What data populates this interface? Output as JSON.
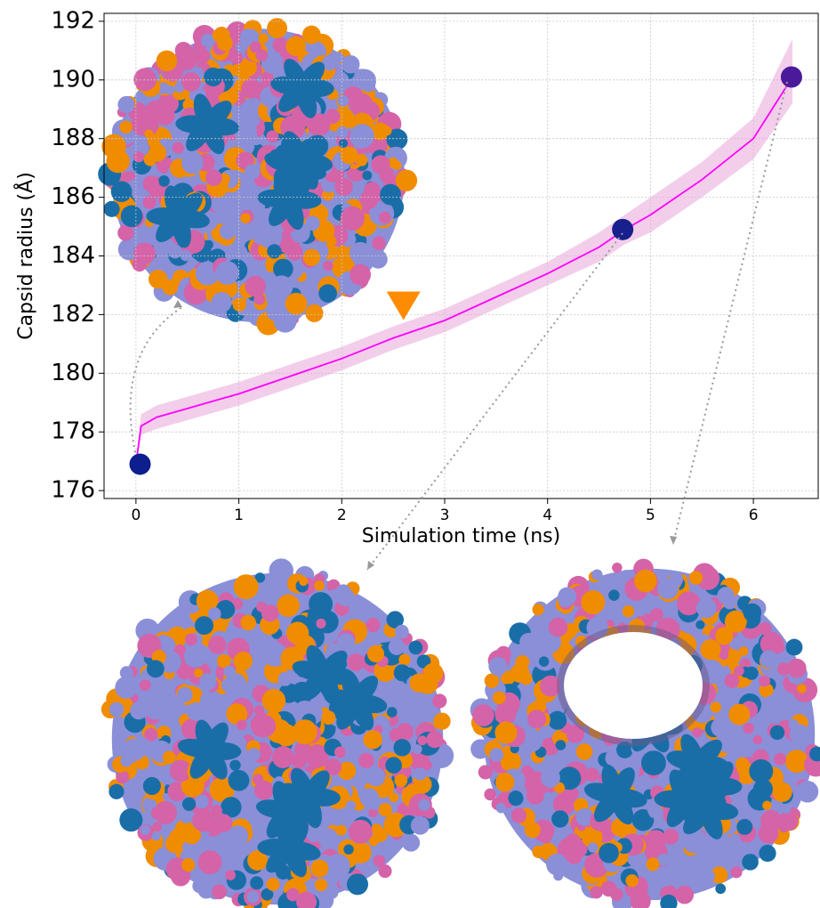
{
  "chart_data": {
    "type": "line",
    "x_label": "Simulation time (ns)",
    "y_label": "Capsid radius (Å)",
    "xlim": [
      -0.31,
      6.63
    ],
    "ylim": [
      175.73,
      192.27
    ],
    "xticks": [
      0,
      1,
      2,
      3,
      4,
      5,
      6
    ],
    "yticks": [
      176,
      178,
      180,
      182,
      184,
      186,
      188,
      190,
      192
    ],
    "grid": true,
    "series": [
      {
        "color": "#ff00ff",
        "band_color": "#e8a6d8",
        "x": [
          0,
          0.05,
          0.2,
          0.5,
          1,
          1.5,
          2,
          2.5,
          3,
          3.5,
          4,
          4.5,
          4.75,
          5,
          5.5,
          6,
          6.38
        ],
        "values": [
          176.9,
          178.2,
          178.5,
          178.8,
          179.3,
          179.9,
          180.5,
          181.2,
          181.8,
          182.6,
          183.4,
          184.3,
          184.9,
          185.4,
          186.6,
          188.0,
          190.1
        ],
        "upper": [
          177.0,
          178.6,
          178.9,
          179.2,
          179.7,
          180.3,
          180.9,
          181.6,
          182.2,
          183.0,
          183.8,
          184.8,
          185.4,
          186.0,
          187.2,
          188.7,
          191.4
        ],
        "lower": [
          176.8,
          177.9,
          178.1,
          178.4,
          178.9,
          179.5,
          180.1,
          180.8,
          181.4,
          182.2,
          183.0,
          183.8,
          184.4,
          184.8,
          186.0,
          187.3,
          189.2
        ]
      }
    ],
    "points": {
      "x": [
        0.04,
        4.73,
        6.37
      ],
      "y": [
        176.9,
        184.9,
        190.1
      ],
      "colors": [
        "#0d1f8c",
        "#17208c",
        "#4b1a9a"
      ]
    },
    "marker": {
      "x": 2.6,
      "y": 182.3,
      "color": "#ff8c00"
    }
  }
}
